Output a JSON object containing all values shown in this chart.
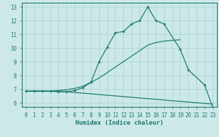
{
  "xlabel": "Humidex (Indice chaleur)",
  "background_color": "#cce8e8",
  "line_color": "#1a7a6e",
  "grid_color": "#aed4d4",
  "xlim": [
    -0.5,
    23.5
  ],
  "ylim": [
    5.7,
    13.3
  ],
  "yticks": [
    6,
    7,
    8,
    9,
    10,
    11,
    12,
    13
  ],
  "xticks": [
    0,
    1,
    2,
    3,
    4,
    5,
    6,
    7,
    8,
    9,
    10,
    11,
    12,
    13,
    14,
    15,
    16,
    17,
    18,
    19,
    20,
    21,
    22,
    23
  ],
  "series": [
    {
      "x": [
        0,
        1,
        2,
        3,
        4,
        5,
        6,
        7,
        8,
        9,
        10,
        11,
        12,
        13,
        14,
        15,
        16,
        17,
        18,
        19,
        20,
        21,
        22,
        23
      ],
      "y": [
        6.85,
        6.85,
        6.85,
        6.85,
        6.85,
        6.8,
        6.75,
        6.7,
        6.65,
        6.6,
        6.55,
        6.5,
        6.45,
        6.4,
        6.35,
        6.3,
        6.25,
        6.2,
        6.15,
        6.1,
        6.05,
        6.0,
        5.95,
        5.9
      ],
      "marker": false
    },
    {
      "x": [
        0,
        1,
        2,
        3,
        4,
        5,
        6,
        7,
        8,
        9,
        10,
        11,
        12,
        13,
        14,
        15,
        16,
        17,
        18,
        19
      ],
      "y": [
        6.85,
        6.85,
        6.85,
        6.85,
        6.9,
        6.95,
        7.05,
        7.2,
        7.5,
        7.8,
        8.2,
        8.6,
        9.0,
        9.4,
        9.8,
        10.2,
        10.4,
        10.5,
        10.55,
        10.6
      ],
      "marker": false
    },
    {
      "x": [
        0,
        1,
        2,
        3,
        4,
        5,
        6,
        7,
        8,
        9,
        10,
        11,
        12,
        13,
        14,
        15,
        16,
        17,
        19,
        20,
        22,
        23
      ],
      "y": [
        6.85,
        6.85,
        6.85,
        6.85,
        6.8,
        6.8,
        6.9,
        7.1,
        7.5,
        9.0,
        10.05,
        11.1,
        11.2,
        11.75,
        12.0,
        13.0,
        12.0,
        11.75,
        9.9,
        8.4,
        7.3,
        5.65
      ],
      "marker": true
    }
  ]
}
